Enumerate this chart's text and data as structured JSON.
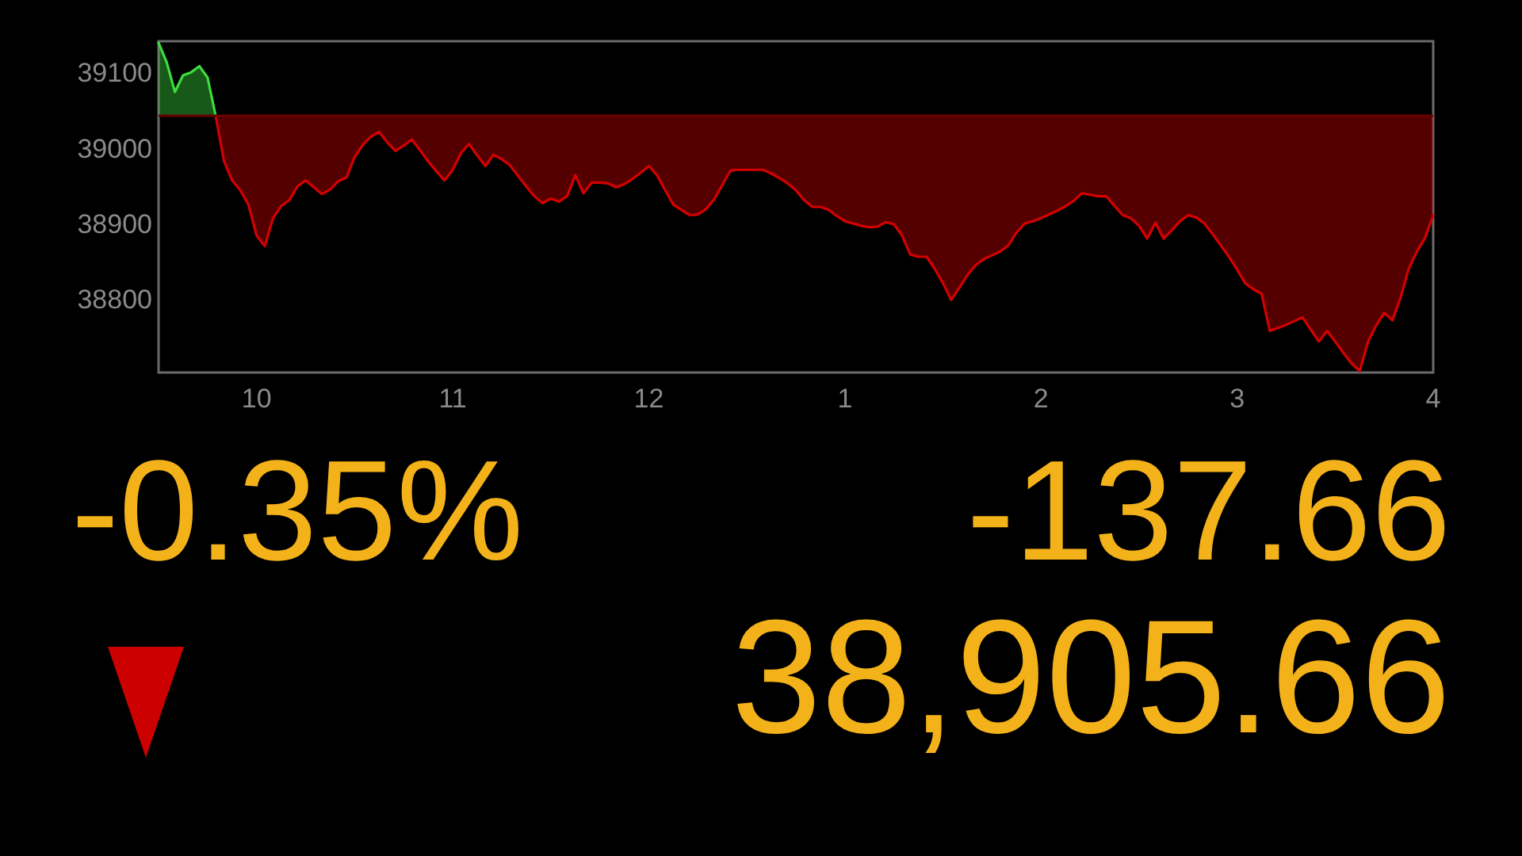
{
  "chart_data": {
    "type": "area",
    "categories": [
      null,
      null,
      null,
      null,
      null,
      null,
      null,
      null,
      null,
      null,
      null,
      null,
      "10",
      null,
      null,
      null,
      null,
      null,
      null,
      null,
      null,
      null,
      null,
      null,
      null,
      null,
      null,
      null,
      null,
      null,
      null,
      null,
      null,
      null,
      null,
      null,
      "11",
      null,
      null,
      null,
      null,
      null,
      null,
      null,
      null,
      null,
      null,
      null,
      null,
      null,
      null,
      null,
      null,
      null,
      null,
      null,
      null,
      null,
      null,
      null,
      "12",
      null,
      null,
      null,
      null,
      null,
      null,
      null,
      null,
      null,
      null,
      null,
      null,
      null,
      null,
      null,
      null,
      null,
      null,
      null,
      null,
      null,
      null,
      null,
      "1",
      null,
      null,
      null,
      null,
      null,
      null,
      null,
      null,
      null,
      null,
      null,
      null,
      null,
      null,
      null,
      null,
      null,
      null,
      null,
      null,
      null,
      null,
      null,
      "2",
      null,
      null,
      null,
      null,
      null,
      null,
      null,
      null,
      null,
      null,
      null,
      null,
      null,
      null,
      null,
      null,
      null,
      null,
      null,
      null,
      null,
      null,
      null,
      "3",
      null,
      null,
      null,
      null,
      null,
      null,
      null,
      null,
      null,
      null,
      null,
      null,
      null,
      null,
      null,
      null,
      null,
      null,
      null,
      null,
      null,
      null,
      null,
      "4"
    ],
    "series": [
      {
        "color": "#3ddc3d",
        "values": [
          39140,
          39114,
          39075,
          39097,
          39101,
          39109,
          39094,
          39043,
          null,
          null,
          null,
          null,
          null,
          null,
          null,
          null,
          null,
          null,
          null,
          null,
          null,
          null,
          null,
          null,
          null,
          null,
          null,
          null,
          null,
          null,
          null,
          null,
          null,
          null,
          null,
          null,
          null,
          null,
          null,
          null,
          null,
          null,
          null,
          null,
          null,
          null,
          null,
          null,
          null,
          null,
          null,
          null,
          null,
          null,
          null,
          null,
          null,
          null,
          null,
          null,
          null,
          null,
          null,
          null,
          null,
          null,
          null,
          null,
          null,
          null,
          null,
          null,
          null,
          null,
          null,
          null,
          null,
          null,
          null,
          null,
          null,
          null,
          null,
          null,
          null,
          null,
          null,
          null,
          null,
          null,
          null,
          null,
          null,
          null,
          null,
          null,
          null,
          null,
          null,
          null,
          null,
          null,
          null,
          null,
          null,
          null,
          null,
          null,
          null,
          null,
          null,
          null,
          null,
          null,
          null,
          null,
          null,
          null,
          null,
          null,
          null,
          null,
          null,
          null,
          null,
          null,
          null,
          null,
          null,
          null,
          null,
          null,
          null,
          null,
          null,
          null,
          null,
          null,
          null,
          null,
          null,
          null,
          null,
          null,
          null,
          null,
          null,
          null,
          null,
          null,
          null,
          null,
          null,
          null,
          null,
          null,
          null
        ]
      },
      {
        "type": "line",
        "color": "#d40000",
        "values": [
          null,
          null,
          null,
          null,
          null,
          null,
          null,
          39043,
          38984,
          38958,
          38945,
          38926,
          38885,
          38871,
          38908,
          38924,
          38932,
          38950,
          38958,
          38949,
          38940,
          38946,
          38957,
          38962,
          38989,
          39005,
          39016,
          39022,
          39008,
          38997,
          39004,
          39012,
          38998,
          38983,
          38970,
          38958,
          38972,
          38994,
          39006,
          38991,
          38977,
          38992,
          38986,
          38978,
          38964,
          38950,
          38937,
          38928,
          38934,
          38930,
          38937,
          38965,
          38941,
          38955,
          38955,
          38954,
          38949,
          38953,
          38960,
          38968,
          38977,
          38965,
          38945,
          38926,
          38919,
          38912,
          38913,
          38920,
          38933,
          38952,
          38971,
          38972,
          38972,
          38972,
          38972,
          38967,
          38961,
          38954,
          38945,
          38932,
          38923,
          38923,
          38919,
          38911,
          38904,
          38901,
          38898,
          38896,
          38897,
          38903,
          38900,
          38885,
          38860,
          38857,
          38857,
          38841,
          38822,
          38800,
          38816,
          38833,
          38846,
          38854,
          38859,
          38864,
          38872,
          38889,
          38901,
          38904,
          38908,
          38913,
          38918,
          38924,
          38931,
          38941,
          38939,
          38937,
          38937,
          38924,
          38912,
          38908,
          38898,
          38881,
          38902,
          38881,
          38892,
          38904,
          38912,
          38909,
          38901,
          38887,
          38872,
          38857,
          38840,
          38822,
          38814,
          38808,
          38759,
          38763,
          38767,
          38772,
          38777,
          38761,
          38745,
          38759,
          38745,
          38730,
          38716,
          38706,
          38744,
          38766,
          38783,
          38773,
          38803,
          38841,
          38864,
          38882,
          38912
        ],
        "lower": [
          null,
          null,
          null,
          null,
          null,
          null,
          null,
          39043,
          38984,
          38958,
          38945,
          38926,
          38885,
          38871,
          38908,
          38924,
          38932,
          38950,
          38958,
          38949,
          38940,
          38946,
          38957,
          38962,
          38989,
          39005,
          39016,
          39022,
          39008,
          38997,
          39004,
          39012,
          38998,
          38983,
          38970,
          38958,
          38972,
          38994,
          39006,
          38991,
          38977,
          38992,
          38986,
          38978,
          38964,
          38950,
          38937,
          38928,
          38934,
          38930,
          38937,
          38965,
          38941,
          38955,
          38955,
          38954,
          38949,
          38953,
          38960,
          38968,
          38977,
          38965,
          38945,
          38926,
          38919,
          38912,
          38913,
          38920,
          38933,
          38952,
          38971,
          38972,
          38972,
          38972,
          38972,
          38967,
          38961,
          38954,
          38945,
          38932,
          38923,
          38923,
          38919,
          38911,
          38904,
          38901,
          38898,
          38896,
          38897,
          38903,
          38900,
          38885,
          38860,
          38857,
          38857,
          38841,
          38822,
          38800,
          38816,
          38833,
          38846,
          38854,
          38859,
          38864,
          38872,
          38889,
          38901,
          38904,
          38908,
          38913,
          38918,
          38924,
          38931,
          38941,
          38939,
          38937,
          38937,
          38924,
          38912,
          38908,
          38898,
          38881,
          38902,
          38881,
          38892,
          38904,
          38912,
          38909,
          38901,
          38887,
          38872,
          38857,
          38840,
          38822,
          38814,
          38808,
          38759,
          38763,
          38767,
          38772,
          38777,
          38761,
          38745,
          38759,
          38745,
          38730,
          38716,
          38706,
          38744,
          38766,
          38783,
          38773,
          38803,
          38841,
          38864,
          38882,
          38912
        ],
        "upper": [
          null,
          null,
          null,
          null,
          null,
          null,
          null,
          39043,
          39043,
          39043,
          39043,
          39043,
          39043,
          39043,
          39043,
          39043,
          39043,
          39043,
          39043,
          39043,
          39043,
          39043,
          39043,
          39043,
          39043,
          39043,
          39043,
          39043,
          39043,
          39043,
          39043,
          39043,
          39043,
          39043,
          39043,
          39043,
          39043,
          39043,
          39043,
          39043,
          39043,
          39043,
          39043,
          39043,
          39043,
          39043,
          39043,
          39043,
          39043,
          39043,
          39043,
          39043,
          39043,
          39043,
          39043,
          39043,
          39043,
          39043,
          39043,
          39043,
          39043,
          39043,
          39043,
          39043,
          39043,
          39043,
          39043,
          39043,
          39043,
          39043,
          39043,
          39043,
          39043,
          39043,
          39043,
          39043,
          39043,
          39043,
          39043,
          39043,
          39043,
          39043,
          39043,
          39043,
          39043,
          39043,
          39043,
          39043,
          39043,
          39043,
          39043,
          39043,
          39043,
          39043,
          39043,
          39043,
          39043,
          39043,
          39043,
          39043,
          39043,
          39043,
          39043,
          39043,
          39043,
          39043,
          39043,
          39043,
          39043,
          39043,
          39043,
          39043,
          39043,
          39043,
          39043,
          39043,
          39043,
          39043,
          39043,
          39043,
          39043,
          39043,
          39043,
          39043,
          39043,
          39043,
          39043,
          39043,
          39043,
          39043,
          39043,
          39043,
          39043,
          39043,
          39043,
          39043,
          39043,
          39043,
          39043,
          39043,
          39043,
          39043,
          39043,
          39043,
          39043,
          39043,
          39043,
          39043,
          39043,
          39043,
          39043,
          39043,
          39043,
          39043,
          39043,
          39043,
          39043
        ]
      }
    ],
    "ylim": [
      38704,
      39142
    ],
    "yticks": [
      38800,
      38900,
      39000,
      39100
    ],
    "ref_lines": [
      {
        "axis": "y",
        "value": 39043,
        "color": "#6a0000"
      }
    ],
    "grid": false,
    "marker": "none",
    "annotations": [
      "-0.35%",
      "-137.66",
      "38,905.66"
    ]
  }
}
